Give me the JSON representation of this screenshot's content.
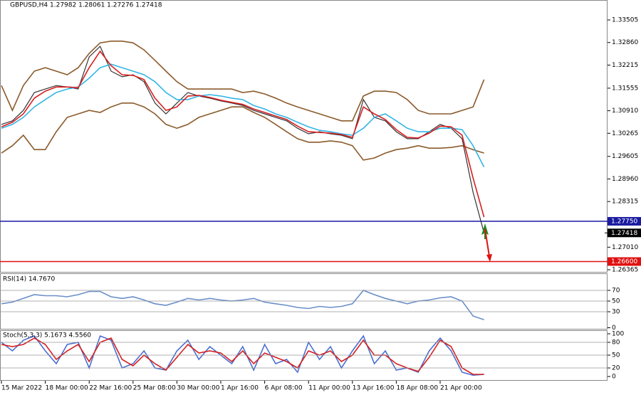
{
  "chart_data": [
    {
      "type": "line",
      "title": "GBPUSD,H4  1.27982 1.28061 1.27276 1.27418",
      "ylim": [
        1.26284,
        1.34075
      ],
      "yticks": [
        1.33505,
        {
          "value": 1.3286,
          "label": "1.32860"
        },
        1.32215,
        1.31555,
        {
          "value": 1.3091,
          "label": "1.30910"
        },
        1.30265,
        1.29605,
        {
          "value": 1.2896,
          "label": "1.28960"
        },
        1.28315,
        {
          "value": 1.2701,
          "label": "1.27010"
        },
        1.26365
      ],
      "grid": false,
      "series": [
        {
          "color": "#8b5a2b",
          "values": [
            1.3163,
            1.3092,
            1.3163,
            1.3204,
            1.3214,
            1.3204,
            1.3194,
            1.3214,
            1.3255,
            1.3285,
            1.329,
            1.329,
            1.3285,
            1.3265,
            1.3235,
            1.3204,
            1.3174,
            1.3153,
            1.3153,
            1.3153,
            1.3153,
            1.3153,
            1.3143,
            1.3147,
            1.3139,
            1.3127,
            1.3113,
            1.3102,
            1.3092,
            1.3082,
            1.3072,
            1.3062,
            1.3062,
            1.3133,
            1.3147,
            1.3147,
            1.3143,
            1.3123,
            1.3092,
            1.3082,
            1.3082,
            1.3082,
            1.3092,
            1.3102,
            1.318
          ]
        },
        {
          "color": "#8b5a2b",
          "values": [
            1.297,
            1.2991,
            1.3021,
            1.298,
            1.298,
            1.3031,
            1.3072,
            1.3082,
            1.3092,
            1.3086,
            1.3102,
            1.3113,
            1.3113,
            1.3102,
            1.3082,
            1.3052,
            1.3041,
            1.3052,
            1.3072,
            1.3082,
            1.3092,
            1.3102,
            1.3102,
            1.3086,
            1.3072,
            1.3052,
            1.3031,
            1.3011,
            1.3001,
            1.3001,
            1.3005,
            1.3001,
            1.2991,
            1.295,
            1.2956,
            1.297,
            1.298,
            1.2984,
            1.2991,
            1.2984,
            1.2984,
            1.2986,
            1.2991,
            1.298,
            1.297
          ]
        },
        {
          "color": "#333333",
          "values": [
            1.3052,
            1.3062,
            1.3092,
            1.3143,
            1.3153,
            1.3163,
            1.3159,
            1.3153,
            1.3245,
            1.3275,
            1.3204,
            1.3188,
            1.3194,
            1.3174,
            1.3113,
            1.3082,
            1.3113,
            1.3143,
            1.3133,
            1.3127,
            1.3119,
            1.3113,
            1.3106,
            1.3092,
            1.3082,
            1.3072,
            1.3062,
            1.3041,
            1.3025,
            1.3031,
            1.3025,
            1.3021,
            1.3011,
            1.3123,
            1.3072,
            1.3062,
            1.3031,
            1.3011,
            1.3011,
            1.3031,
            1.3052,
            1.3041,
            1.3011,
            1.2858,
            1.2742
          ]
        },
        {
          "color": "#33b5e5",
          "values": [
            1.3041,
            1.3052,
            1.3072,
            1.3102,
            1.3123,
            1.3143,
            1.3153,
            1.3159,
            1.3184,
            1.3214,
            1.3224,
            1.3214,
            1.3204,
            1.3194,
            1.3174,
            1.3143,
            1.3123,
            1.3123,
            1.3133,
            1.3137,
            1.3133,
            1.3127,
            1.3123,
            1.3106,
            1.3096,
            1.3082,
            1.3072,
            1.3058,
            1.3045,
            1.3035,
            1.3031,
            1.3025,
            1.3021,
            1.3041,
            1.3072,
            1.3082,
            1.3062,
            1.3041,
            1.3031,
            1.3031,
            1.3041,
            1.3041,
            1.3037,
            1.2991,
            1.293
          ]
        },
        {
          "color": "#d62020",
          "values": [
            1.3045,
            1.3058,
            1.3082,
            1.3127,
            1.3147,
            1.3159,
            1.3159,
            1.3157,
            1.3214,
            1.3261,
            1.322,
            1.3194,
            1.3192,
            1.318,
            1.3127,
            1.3092,
            1.3102,
            1.3133,
            1.3135,
            1.3129,
            1.3121,
            1.3115,
            1.3109,
            1.3096,
            1.3086,
            1.3076,
            1.3066,
            1.3047,
            1.3031,
            1.3029,
            1.3027,
            1.3023,
            1.3015,
            1.3102,
            1.3082,
            1.3066,
            1.3037,
            1.3015,
            1.3013,
            1.3027,
            1.3047,
            1.3045,
            1.3021,
            1.2899,
            1.2787
          ]
        }
      ],
      "hlines": [
        {
          "value": 1.2775,
          "label": "1.27750",
          "color": "#1a1aa0"
        },
        {
          "value": 1.266,
          "label": "1.26600",
          "color": "#e01010"
        }
      ],
      "last_price": 1.27418
    },
    {
      "type": "line",
      "title": "RSI(14) 14.7670",
      "ylim": [
        0,
        100
      ],
      "yticks": [
        0,
        30,
        50,
        70
      ],
      "grid": true,
      "series": [
        {
          "color": "#6a8fc8",
          "values": [
            45,
            48,
            55,
            62,
            60,
            60,
            58,
            62,
            68,
            68,
            58,
            55,
            58,
            52,
            45,
            42,
            48,
            55,
            52,
            55,
            52,
            50,
            52,
            55,
            48,
            45,
            42,
            38,
            36,
            40,
            38,
            40,
            45,
            70,
            62,
            55,
            50,
            45,
            50,
            52,
            56,
            58,
            50,
            22,
            15
          ]
        }
      ]
    },
    {
      "type": "line",
      "title": "Stoch(5,3,3) 5.1673 4.5560",
      "ylim": [
        0,
        100
      ],
      "yticks": [
        0,
        20,
        50,
        80,
        100
      ],
      "grid": true,
      "categories": [
        "15 Mar 2022",
        null,
        null,
        null,
        "18 Mar 00:00",
        null,
        null,
        null,
        "22 Mar 16:00",
        null,
        null,
        null,
        "25 Mar 08:00",
        null,
        null,
        null,
        "30 Mar 00:00",
        null,
        null,
        null,
        "1 Apr 16:00",
        null,
        null,
        null,
        "6 Apr 08:00",
        null,
        null,
        null,
        "11 Apr 00:00",
        null,
        null,
        null,
        "13 Apr 16:00",
        null,
        null,
        null,
        "18 Apr 08:00",
        null,
        null,
        null,
        "21 Apr 00:00",
        null,
        null,
        null,
        null
      ],
      "series": [
        {
          "color": "#4a6fd0",
          "values": [
            80,
            60,
            85,
            95,
            60,
            30,
            75,
            80,
            20,
            95,
            85,
            20,
            30,
            60,
            20,
            15,
            60,
            85,
            40,
            70,
            50,
            30,
            70,
            15,
            75,
            30,
            40,
            10,
            80,
            40,
            70,
            20,
            60,
            95,
            30,
            60,
            15,
            20,
            10,
            60,
            90,
            60,
            10,
            3,
            5
          ]
        },
        {
          "color": "#d62020",
          "values": [
            75,
            70,
            75,
            90,
            75,
            40,
            60,
            75,
            35,
            80,
            90,
            40,
            25,
            50,
            30,
            15,
            45,
            75,
            55,
            60,
            55,
            35,
            60,
            30,
            55,
            45,
            35,
            20,
            60,
            50,
            60,
            35,
            50,
            85,
            50,
            50,
            30,
            20,
            12,
            45,
            85,
            70,
            20,
            5,
            5
          ]
        }
      ]
    }
  ]
}
